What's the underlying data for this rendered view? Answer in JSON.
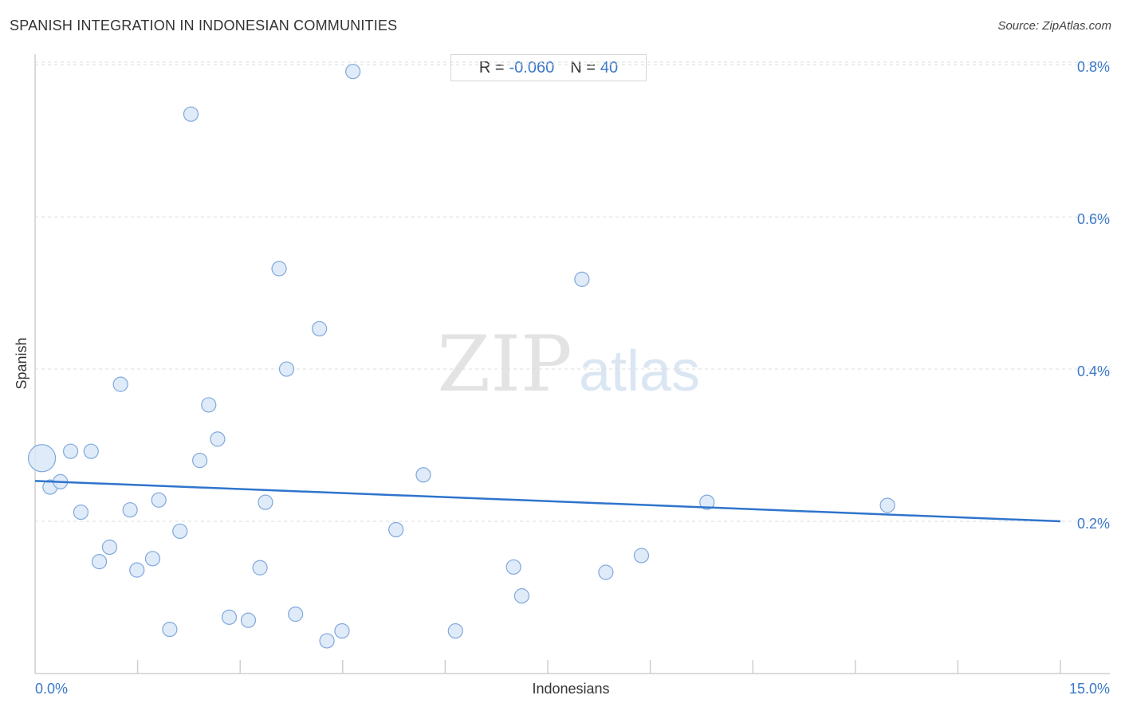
{
  "title": "SPANISH INTEGRATION IN INDONESIAN COMMUNITIES",
  "source": "Source: ZipAtlas.com",
  "stats": {
    "r_label": "R =",
    "r_value": "-0.060",
    "n_label": "N =",
    "n_value": "40"
  },
  "watermark": {
    "zip": "ZIP",
    "atlas": "atlas"
  },
  "colors": {
    "accent": "#3a78c9",
    "point_fill": "#dbe8f8",
    "point_stroke": "#7fa8dc",
    "trend": "#2f74cc"
  },
  "chart_data": {
    "type": "scatter",
    "title": "SPANISH INTEGRATION IN INDONESIAN COMMUNITIES",
    "xlabel": "Indonesians",
    "ylabel": "Spanish",
    "xlim": [
      0,
      15
    ],
    "ylim": [
      0.0,
      0.82
    ],
    "x_tick_labels": [
      {
        "value": 0,
        "label": "0.0%"
      },
      {
        "value": 15,
        "label": "15.0%"
      }
    ],
    "y_tick_labels": [
      {
        "value": 0.8,
        "label": "0.8%"
      },
      {
        "value": 0.6,
        "label": "0.6%"
      },
      {
        "value": 0.4,
        "label": "0.4%"
      },
      {
        "value": 0.2,
        "label": "0.2%"
      }
    ],
    "grid": "horizontal-dashed",
    "trend_line": {
      "x": [
        0,
        15
      ],
      "y": [
        0.253,
        0.2
      ]
    },
    "points": [
      {
        "x": 0.1,
        "y": 0.283,
        "size": "large"
      },
      {
        "x": 0.22,
        "y": 0.245
      },
      {
        "x": 0.37,
        "y": 0.252
      },
      {
        "x": 0.52,
        "y": 0.292
      },
      {
        "x": 0.67,
        "y": 0.212
      },
      {
        "x": 0.82,
        "y": 0.292
      },
      {
        "x": 0.94,
        "y": 0.147
      },
      {
        "x": 1.09,
        "y": 0.166
      },
      {
        "x": 1.25,
        "y": 0.38
      },
      {
        "x": 1.39,
        "y": 0.215
      },
      {
        "x": 1.49,
        "y": 0.136
      },
      {
        "x": 1.72,
        "y": 0.151
      },
      {
        "x": 1.81,
        "y": 0.228
      },
      {
        "x": 1.97,
        "y": 0.058
      },
      {
        "x": 2.12,
        "y": 0.187
      },
      {
        "x": 2.28,
        "y": 0.735
      },
      {
        "x": 2.41,
        "y": 0.28
      },
      {
        "x": 2.54,
        "y": 0.353
      },
      {
        "x": 2.67,
        "y": 0.308
      },
      {
        "x": 2.84,
        "y": 0.074
      },
      {
        "x": 3.12,
        "y": 0.07
      },
      {
        "x": 3.29,
        "y": 0.139
      },
      {
        "x": 3.37,
        "y": 0.225
      },
      {
        "x": 3.57,
        "y": 0.532
      },
      {
        "x": 3.68,
        "y": 0.4
      },
      {
        "x": 3.81,
        "y": 0.078
      },
      {
        "x": 4.16,
        "y": 0.453
      },
      {
        "x": 4.27,
        "y": 0.043
      },
      {
        "x": 4.49,
        "y": 0.056
      },
      {
        "x": 4.65,
        "y": 0.791
      },
      {
        "x": 5.28,
        "y": 0.189
      },
      {
        "x": 5.68,
        "y": 0.261
      },
      {
        "x": 6.15,
        "y": 0.056
      },
      {
        "x": 7.0,
        "y": 0.14
      },
      {
        "x": 7.12,
        "y": 0.102
      },
      {
        "x": 8.0,
        "y": 0.518
      },
      {
        "x": 8.35,
        "y": 0.133
      },
      {
        "x": 8.87,
        "y": 0.155
      },
      {
        "x": 9.83,
        "y": 0.225
      },
      {
        "x": 12.47,
        "y": 0.221
      }
    ]
  }
}
